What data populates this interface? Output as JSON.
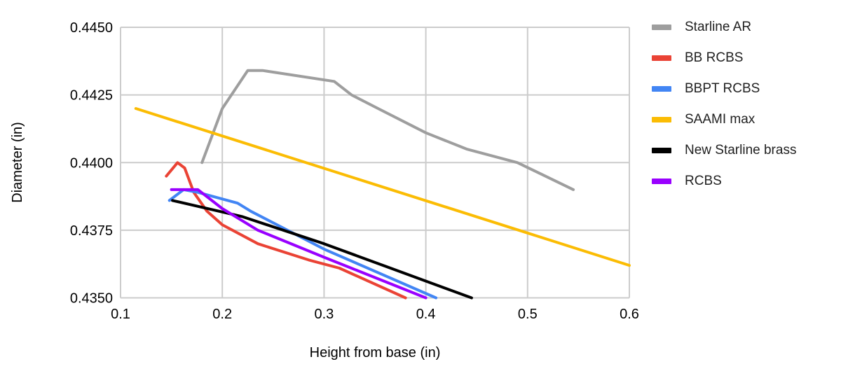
{
  "chart_data": {
    "type": "line",
    "title": "",
    "xlabel": "Height from base (in)",
    "ylabel": "Diameter (in)",
    "xlim": [
      0.1,
      0.6
    ],
    "ylim": [
      0.435,
      0.445
    ],
    "grid": true,
    "legend_position": "right",
    "x_ticks": [
      {
        "label": "0.1",
        "value": 0.1
      },
      {
        "label": "0.2",
        "value": 0.2
      },
      {
        "label": "0.3",
        "value": 0.3
      },
      {
        "label": "0.4",
        "value": 0.4
      },
      {
        "label": "0.5",
        "value": 0.5
      },
      {
        "label": "0.6",
        "value": 0.6
      }
    ],
    "y_ticks": [
      {
        "label": "0.4450",
        "value": 0.445
      },
      {
        "label": "0.4425",
        "value": 0.4425
      },
      {
        "label": "0.4400",
        "value": 0.44
      },
      {
        "label": "0.4375",
        "value": 0.4375
      },
      {
        "label": "0.4350",
        "value": 0.435
      }
    ],
    "series": [
      {
        "name": "Starline AR",
        "color": "#9E9E9E",
        "points": [
          [
            0.18,
            0.44
          ],
          [
            0.2,
            0.442
          ],
          [
            0.225,
            0.4434
          ],
          [
            0.24,
            0.4434
          ],
          [
            0.31,
            0.443
          ],
          [
            0.327,
            0.4425
          ],
          [
            0.353,
            0.442
          ],
          [
            0.4,
            0.4411
          ],
          [
            0.44,
            0.4405
          ],
          [
            0.49,
            0.44
          ],
          [
            0.545,
            0.439
          ]
        ]
      },
      {
        "name": "BB RCBS",
        "color": "#EA4335",
        "points": [
          [
            0.145,
            0.4395
          ],
          [
            0.156,
            0.44
          ],
          [
            0.163,
            0.4398
          ],
          [
            0.172,
            0.4389
          ],
          [
            0.185,
            0.4382
          ],
          [
            0.2,
            0.4377
          ],
          [
            0.235,
            0.437
          ],
          [
            0.285,
            0.4364
          ],
          [
            0.315,
            0.4361
          ],
          [
            0.38,
            0.435
          ]
        ]
      },
      {
        "name": "BBPT RCBS",
        "color": "#4285F4",
        "points": [
          [
            0.148,
            0.4386
          ],
          [
            0.162,
            0.439
          ],
          [
            0.176,
            0.4389
          ],
          [
            0.215,
            0.4385
          ],
          [
            0.228,
            0.4382
          ],
          [
            0.3,
            0.4368
          ],
          [
            0.41,
            0.435
          ]
        ]
      },
      {
        "name": "SAAMI max",
        "color": "#FBBC04",
        "points": [
          [
            0.115,
            0.442
          ],
          [
            0.6,
            0.4362
          ]
        ]
      },
      {
        "name": "New Starline brass",
        "color": "#000000",
        "points": [
          [
            0.151,
            0.4386
          ],
          [
            0.22,
            0.438
          ],
          [
            0.3,
            0.437
          ],
          [
            0.445,
            0.435
          ]
        ]
      },
      {
        "name": "RCBS",
        "color": "#9900FF",
        "points": [
          [
            0.15,
            0.439
          ],
          [
            0.176,
            0.439
          ],
          [
            0.2,
            0.4383
          ],
          [
            0.235,
            0.4375
          ],
          [
            0.3,
            0.4365
          ],
          [
            0.4,
            0.435
          ]
        ]
      }
    ],
    "style": {
      "grid_color": "#CCCCCC",
      "tick_text_color": "#000000",
      "axis_title_color": "#000000",
      "legend_text_color": "#212121",
      "background": "#FFFFFF"
    }
  }
}
